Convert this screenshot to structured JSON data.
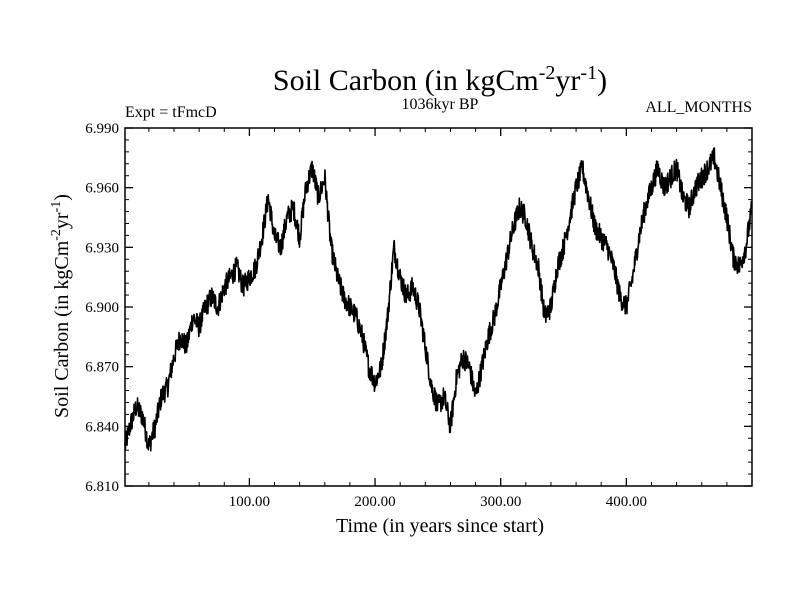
{
  "chart_data": {
    "type": "line",
    "title": "Soil Carbon (in kgCm",
    "title_sup1": "-2",
    "title_mid": "yr",
    "title_sup2": "-1",
    "title_end": ")",
    "left_label": "Expt = tFmcD",
    "center_label": "1036kyr BP",
    "right_label": "ALL_MONTHS",
    "xlabel": "Time (in years since start)",
    "ylabel": "Soil Carbon (in kgCm",
    "ylabel_sup1": "-2",
    "ylabel_mid": "yr",
    "ylabel_sup2": "-1",
    "ylabel_end": ")",
    "xlim": [
      1,
      500
    ],
    "ylim": [
      6.81,
      6.99
    ],
    "x_ticks": [
      100,
      200,
      300,
      400
    ],
    "x_tick_labels": [
      "100.00",
      "200.00",
      "300.00",
      "400.00"
    ],
    "y_ticks": [
      6.81,
      6.84,
      6.87,
      6.9,
      6.93,
      6.96,
      6.99
    ],
    "y_tick_labels": [
      "6.810",
      "6.840",
      "6.870",
      "6.900",
      "6.930",
      "6.960",
      "6.990"
    ],
    "series": [
      {
        "name": "soil carbon",
        "color": "#000000",
        "x": [
          1,
          5,
          10,
          15,
          20,
          25,
          30,
          35,
          40,
          45,
          50,
          55,
          60,
          65,
          70,
          75,
          80,
          85,
          90,
          95,
          100,
          105,
          110,
          115,
          120,
          125,
          130,
          135,
          140,
          145,
          150,
          155,
          160,
          165,
          170,
          175,
          180,
          185,
          190,
          195,
          200,
          205,
          210,
          215,
          220,
          225,
          230,
          235,
          240,
          245,
          250,
          255,
          260,
          265,
          270,
          275,
          280,
          285,
          290,
          295,
          300,
          305,
          310,
          315,
          320,
          325,
          330,
          335,
          340,
          345,
          350,
          355,
          360,
          365,
          370,
          375,
          380,
          385,
          390,
          395,
          400,
          405,
          410,
          415,
          420,
          425,
          430,
          435,
          440,
          445,
          450,
          455,
          460,
          465,
          470,
          475,
          480,
          485,
          490,
          495,
          500
        ],
        "y": [
          6.83,
          6.84,
          6.85,
          6.845,
          6.83,
          6.84,
          6.855,
          6.86,
          6.875,
          6.885,
          6.88,
          6.895,
          6.89,
          6.9,
          6.905,
          6.9,
          6.91,
          6.915,
          6.92,
          6.91,
          6.915,
          6.92,
          6.935,
          6.955,
          6.935,
          6.93,
          6.945,
          6.95,
          6.935,
          6.96,
          6.97,
          6.955,
          6.965,
          6.93,
          6.915,
          6.905,
          6.9,
          6.895,
          6.885,
          6.87,
          6.862,
          6.87,
          6.895,
          6.93,
          6.915,
          6.905,
          6.91,
          6.9,
          6.88,
          6.86,
          6.85,
          6.855,
          6.84,
          6.865,
          6.875,
          6.87,
          6.855,
          6.87,
          6.885,
          6.895,
          6.91,
          6.925,
          6.94,
          6.95,
          6.945,
          6.93,
          6.92,
          6.895,
          6.9,
          6.92,
          6.93,
          6.945,
          6.96,
          6.97,
          6.955,
          6.94,
          6.935,
          6.93,
          6.92,
          6.905,
          6.9,
          6.915,
          6.935,
          6.95,
          6.96,
          6.97,
          6.96,
          6.965,
          6.97,
          6.955,
          6.95,
          6.96,
          6.965,
          6.97,
          6.975,
          6.96,
          6.945,
          6.925,
          6.92,
          6.93,
          6.95
        ]
      }
    ]
  }
}
